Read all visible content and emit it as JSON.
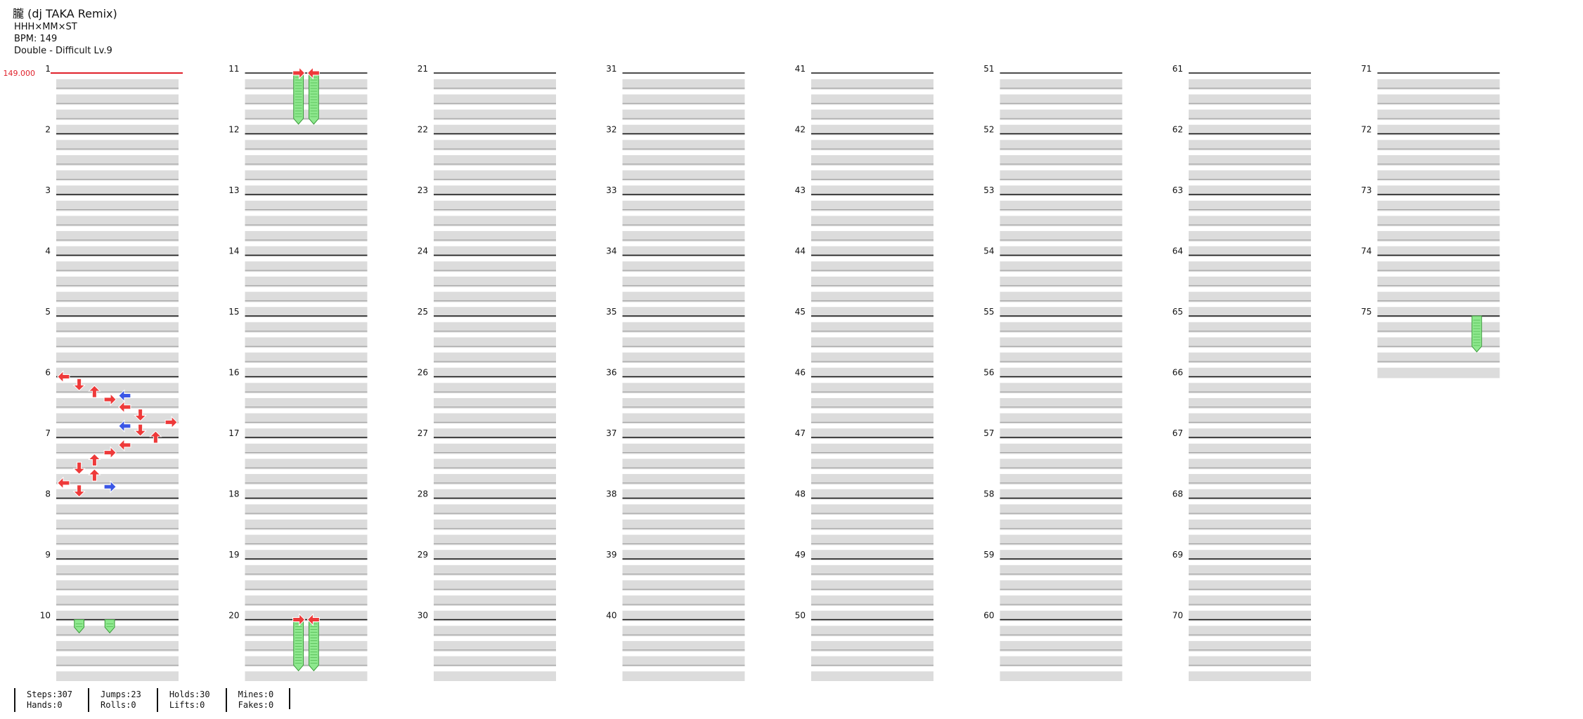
{
  "song": {
    "title": "朧 (dj TAKA Remix)",
    "artist": "HHH×MM×ST",
    "bpm_label": "BPM: 149",
    "difficulty": "Double - Difficult Lv.9",
    "bpm_marker": "149.000"
  },
  "colors": {
    "arrow_red": "#ee3a3a",
    "arrow_blue": "#3a56e6",
    "hold_green": "#8ee88e",
    "band_gray": "#dcdcdc",
    "line": "#111111",
    "bpm": "#e0202a"
  },
  "stats": [
    {
      "a": "Steps:307",
      "b": "Hands:0"
    },
    {
      "a": "Jumps:23",
      "b": "Rolls:0"
    },
    {
      "a": "Holds:30",
      "b": "Lifts:0"
    },
    {
      "a": "Mines:0",
      "b": "Fakes:0"
    }
  ],
  "chart_data": {
    "type": "table",
    "total_measures": 75,
    "measures_per_column": 10,
    "lanes": 8,
    "lane_order": [
      "P1-L",
      "P1-D",
      "P1-U",
      "P1-R",
      "P2-L",
      "P2-D",
      "P2-U",
      "P2-R"
    ],
    "measure_labels": [
      "1",
      "2",
      "3",
      "4",
      "5",
      "6",
      "7",
      "8",
      "9",
      "10",
      "11",
      "12",
      "13",
      "14",
      "15",
      "16",
      "17",
      "18",
      "19",
      "20",
      "21",
      "22",
      "23",
      "24",
      "25",
      "26",
      "27",
      "28",
      "29",
      "30",
      "31",
      "32",
      "33",
      "34",
      "35",
      "36",
      "37",
      "38",
      "39",
      "40",
      "41",
      "42",
      "43",
      "44",
      "45",
      "46",
      "47",
      "48",
      "49",
      "50",
      "51",
      "52",
      "53",
      "54",
      "55",
      "56",
      "57",
      "58",
      "59",
      "60",
      "61",
      "62",
      "63",
      "64",
      "65",
      "66",
      "67",
      "68",
      "69",
      "70",
      "71",
      "72",
      "73",
      "74",
      "75"
    ],
    "notes_note": "measure = measure number, beat = 0-4 position within the measure, lane = 0-7, color = red (quarter/eighth) or blue (sixteenth)",
    "notes": [
      {
        "m": 6,
        "b": 0,
        "l": 0,
        "c": "r"
      },
      {
        "m": 6,
        "b": 0.5,
        "l": 1,
        "c": "r"
      },
      {
        "m": 6,
        "b": 1,
        "l": 2,
        "c": "r"
      },
      {
        "m": 6,
        "b": 1.5,
        "l": 3,
        "c": "r"
      },
      {
        "m": 6,
        "b": 1.25,
        "l": 4,
        "c": "b"
      },
      {
        "m": 6,
        "b": 2,
        "l": 4,
        "c": "r"
      },
      {
        "m": 6,
        "b": 2.5,
        "l": 5,
        "c": "r"
      },
      {
        "m": 6,
        "b": 3,
        "l": 7,
        "c": "r"
      },
      {
        "m": 6,
        "b": 3.25,
        "l": 4,
        "c": "b"
      },
      {
        "m": 6,
        "b": 3.5,
        "l": 5,
        "c": "r"
      },
      {
        "m": 7,
        "b": 0,
        "l": 6,
        "c": "r"
      },
      {
        "m": 7,
        "b": 0.5,
        "l": 4,
        "c": "r"
      },
      {
        "m": 7,
        "b": 1,
        "l": 3,
        "c": "r"
      },
      {
        "m": 7,
        "b": 1.5,
        "l": 2,
        "c": "r"
      },
      {
        "m": 7,
        "b": 2,
        "l": 1,
        "c": "r"
      },
      {
        "m": 7,
        "b": 2.5,
        "l": 2,
        "c": "r"
      },
      {
        "m": 7,
        "b": 3,
        "l": 0,
        "c": "r"
      },
      {
        "m": 7,
        "b": 3.25,
        "l": 3,
        "c": "b"
      },
      {
        "m": 7,
        "b": 3.5,
        "l": 1,
        "c": "r"
      },
      {
        "m": 11,
        "b": 0,
        "l": 3,
        "c": "r"
      },
      {
        "m": 11,
        "b": 0,
        "l": 4,
        "c": "r"
      },
      {
        "m": 20,
        "b": 0,
        "l": 3,
        "c": "r"
      },
      {
        "m": 20,
        "b": 0,
        "l": 4,
        "c": "r"
      }
    ],
    "holds_note": "holds: measure, start beat, end measure, end beat, lane",
    "holds": [
      {
        "m": 10,
        "b": 0,
        "em": 10,
        "eb": 0.5,
        "l": 1
      },
      {
        "m": 10,
        "b": 0,
        "em": 10,
        "eb": 0.5,
        "l": 3
      },
      {
        "m": 11,
        "b": 0,
        "em": 11,
        "eb": 3,
        "l": 3
      },
      {
        "m": 11,
        "b": 0,
        "em": 11,
        "eb": 3,
        "l": 4
      },
      {
        "m": 20,
        "b": 0,
        "em": 20,
        "eb": 3,
        "l": 3
      },
      {
        "m": 20,
        "b": 0,
        "em": 20,
        "eb": 3,
        "l": 4
      },
      {
        "m": 75,
        "b": 0,
        "em": 75,
        "eb": 2,
        "l": 6
      }
    ]
  }
}
